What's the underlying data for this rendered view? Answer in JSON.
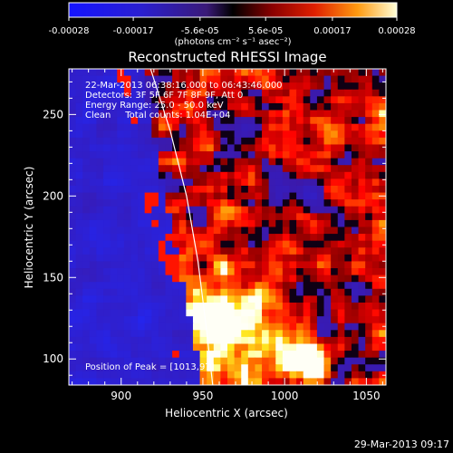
{
  "chart_data": {
    "type": "heatmap",
    "title": "Reconstructed RHESSI Image",
    "xlabel": "Heliocentric X (arcsec)",
    "ylabel": "Heliocentric Y (arcsec)",
    "xlim": [
      868,
      1062
    ],
    "ylim": [
      84,
      278
    ],
    "x_ticks": [
      900,
      950,
      1000,
      1050
    ],
    "y_ticks": [
      100,
      150,
      200,
      250
    ],
    "colorbar": {
      "range": [
        -0.00028,
        0.00028
      ],
      "tick_labels": [
        "-0.00028",
        "-0.00017",
        "-5.6e-05",
        "5.6e-05",
        "0.00017",
        "0.00028"
      ],
      "unit_label": "(photons cm⁻² s⁻¹ asec⁻²)"
    },
    "info_lines": [
      "22-Mar-2013 06:38:16.000 to 06:43:46.000",
      "Detectors: 3F 5F 6F 7F 8F 9F, Att 0",
      "Energy Range: 25.0 - 50.0 keV",
      "Clean     Total counts: 1.04E+04"
    ],
    "peak_label": "Position of Peak = [1013,97]",
    "timestamp": "29-Mar-2013 09:17",
    "limb_curve": [
      [
        918,
        278
      ],
      [
        930,
        240
      ],
      [
        940,
        200
      ],
      [
        947,
        160
      ],
      [
        952,
        120
      ],
      [
        956,
        84
      ]
    ],
    "peak_position": [
      1013,
      97
    ]
  }
}
